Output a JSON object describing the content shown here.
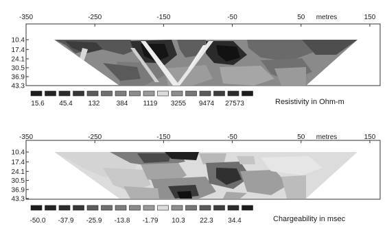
{
  "chart_data": [
    {
      "type": "heatmap",
      "title": "",
      "x_axis": {
        "unit_label": "metres",
        "ticks": [
          -350,
          -250,
          -150,
          -50,
          50,
          150
        ],
        "range": [
          -350,
          165
        ]
      },
      "y_axis": {
        "ticks": [
          10.4,
          17.4,
          24.1,
          30.5,
          36.9,
          43.3
        ],
        "reversed": true
      },
      "color_scale": {
        "label": "Resistivity in Ohm-m",
        "tick_labels": [
          "15.6",
          "45.4",
          "132",
          "384",
          "1119",
          "3255",
          "9474",
          "27573"
        ],
        "swatches": [
          "#1c1c1c",
          "#242424",
          "#2c2c2c",
          "#363636",
          "#5c5c5c",
          "#707070",
          "#7e7e7e",
          "#8c8c8c",
          "#9a9a9a",
          "#dcdcdc",
          "#8e8e8e",
          "#767676",
          "#5a5a5a",
          "#3e3e3e",
          "#2c2c2c",
          "#1c1c1c"
        ]
      },
      "section_top_x": [
        -325,
        130
      ],
      "section_bottom_x": [
        -228,
        40
      ]
    },
    {
      "type": "heatmap",
      "title": "",
      "x_axis": {
        "unit_label": "metres",
        "ticks": [
          -350,
          -250,
          -150,
          -50,
          50,
          150
        ],
        "range": [
          -350,
          165
        ]
      },
      "y_axis": {
        "ticks": [
          10.4,
          17.4,
          24.1,
          30.5,
          36.9,
          43.3
        ],
        "reversed": true
      },
      "color_scale": {
        "label": "Chargeability in msec",
        "tick_labels": [
          "-50.0",
          "-37.9",
          "-25.9",
          "-13.8",
          "-1.79",
          "10.3",
          "22.3",
          "34.4"
        ],
        "swatches": [
          "#1c1c1c",
          "#242424",
          "#2c2c2c",
          "#363636",
          "#5c5c5c",
          "#707070",
          "#7e7e7e",
          "#8c8c8c",
          "#9a9a9a",
          "#dcdcdc",
          "#8e8e8e",
          "#767676",
          "#5a5a5a",
          "#3e3e3e",
          "#2c2c2c",
          "#1c1c1c"
        ]
      },
      "section_top_x": [
        -325,
        130
      ],
      "section_bottom_x": [
        -228,
        40
      ]
    }
  ]
}
